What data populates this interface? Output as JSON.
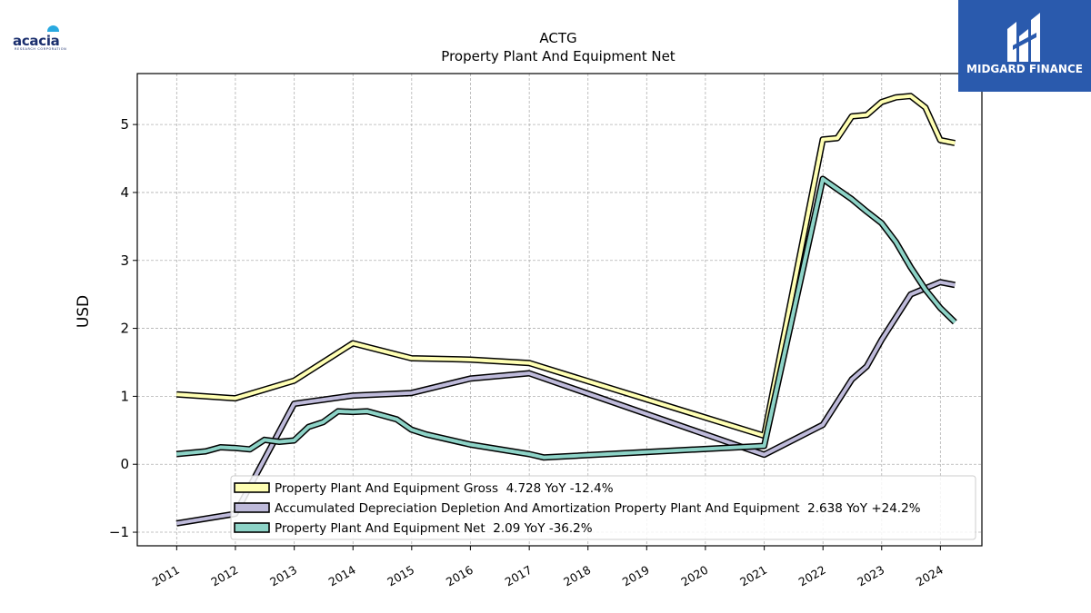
{
  "brand": {
    "company_logo_text": "acacia",
    "company_logo_subtext": "RESEARCH CORPORATION",
    "badge_text": "MIDGARD FINANCE"
  },
  "colors": {
    "gross": "#ffffb3",
    "depreciation": "#bebada",
    "net": "#8dd3c7",
    "outline": "#000000",
    "badge": "#2a5aad"
  },
  "chart_data": {
    "type": "line",
    "title": "ACTG",
    "subtitle": "Property Plant And Equipment Net",
    "ylabel": "USD",
    "xlabel": "",
    "xlim": [
      "2010-05-01",
      "2024-09-15"
    ],
    "ylim": [
      -1.2,
      5.75
    ],
    "yticks": [
      -1,
      0,
      1,
      2,
      3,
      4,
      5
    ],
    "xticks": [
      "2011",
      "2012",
      "2013",
      "2014",
      "2015",
      "2016",
      "2017",
      "2018",
      "2019",
      "2020",
      "2021",
      "2022",
      "2023",
      "2024"
    ],
    "grid": true,
    "legend_position": "lower-center",
    "series": [
      {
        "name": "Property Plant And Equipment Gross  4.728 YoY -12.4%",
        "color": "#ffffb3",
        "points": [
          [
            "2010-12-31",
            1.03
          ],
          [
            "2011-12-31",
            0.97
          ],
          [
            "2012-12-31",
            1.23
          ],
          [
            "2013-12-31",
            1.78
          ],
          [
            "2014-12-31",
            1.56
          ],
          [
            "2015-12-31",
            1.54
          ],
          [
            "2016-12-31",
            1.49
          ],
          [
            "2020-12-31",
            0.42
          ],
          [
            "2021-12-31",
            4.78
          ],
          [
            "2022-03-31",
            4.8
          ],
          [
            "2022-06-30",
            5.12
          ],
          [
            "2022-09-30",
            5.14
          ],
          [
            "2022-12-31",
            5.33
          ],
          [
            "2023-03-31",
            5.4
          ],
          [
            "2023-06-30",
            5.42
          ],
          [
            "2023-09-30",
            5.25
          ],
          [
            "2023-12-31",
            4.77
          ],
          [
            "2024-03-31",
            4.728
          ]
        ]
      },
      {
        "name": "Accumulated Depreciation Depletion And Amortization Property Plant And Equipment  2.638 YoY +24.2%",
        "color": "#bebada",
        "points": [
          [
            "2010-12-31",
            -0.87
          ],
          [
            "2011-12-31",
            -0.73
          ],
          [
            "2012-12-31",
            0.89
          ],
          [
            "2013-12-31",
            1.01
          ],
          [
            "2014-12-31",
            1.05
          ],
          [
            "2015-12-31",
            1.26
          ],
          [
            "2016-12-31",
            1.34
          ],
          [
            "2020-12-31",
            0.14
          ],
          [
            "2021-12-31",
            0.58
          ],
          [
            "2022-06-30",
            1.25
          ],
          [
            "2022-09-30",
            1.44
          ],
          [
            "2022-12-31",
            1.83
          ],
          [
            "2023-06-30",
            2.5
          ],
          [
            "2023-12-31",
            2.68
          ],
          [
            "2024-03-31",
            2.638
          ]
        ]
      },
      {
        "name": "Property Plant And Equipment Net  2.09 YoY -36.2%",
        "color": "#8dd3c7",
        "points": [
          [
            "2010-12-31",
            0.15
          ],
          [
            "2011-06-30",
            0.19
          ],
          [
            "2011-09-30",
            0.25
          ],
          [
            "2011-12-31",
            0.24
          ],
          [
            "2012-03-31",
            0.22
          ],
          [
            "2012-06-30",
            0.36
          ],
          [
            "2012-09-30",
            0.33
          ],
          [
            "2012-12-31",
            0.35
          ],
          [
            "2013-03-31",
            0.55
          ],
          [
            "2013-06-30",
            0.62
          ],
          [
            "2013-09-30",
            0.78
          ],
          [
            "2013-12-31",
            0.77
          ],
          [
            "2014-03-31",
            0.78
          ],
          [
            "2014-06-30",
            0.72
          ],
          [
            "2014-09-30",
            0.66
          ],
          [
            "2014-12-31",
            0.51
          ],
          [
            "2015-03-31",
            0.44
          ],
          [
            "2015-12-31",
            0.29
          ],
          [
            "2016-12-31",
            0.15
          ],
          [
            "2017-03-31",
            0.1
          ],
          [
            "2020-12-31",
            0.27
          ],
          [
            "2021-12-31",
            4.2
          ],
          [
            "2022-03-31",
            4.05
          ],
          [
            "2022-06-30",
            3.9
          ],
          [
            "2022-09-30",
            3.72
          ],
          [
            "2022-12-31",
            3.55
          ],
          [
            "2023-03-31",
            3.27
          ],
          [
            "2023-06-30",
            2.9
          ],
          [
            "2023-09-30",
            2.57
          ],
          [
            "2023-12-31",
            2.3
          ],
          [
            "2024-03-31",
            2.09
          ]
        ]
      }
    ]
  }
}
